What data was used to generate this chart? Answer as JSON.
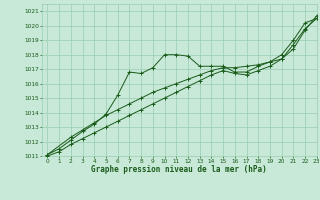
{
  "title": "Graphe pression niveau de la mer (hPa)",
  "bg_color": "#c8e8d8",
  "grid_color": "#99ccb0",
  "line_color": "#1a5c1a",
  "xlim": [
    -0.5,
    23
  ],
  "ylim": [
    1011,
    1021.5
  ],
  "xticks": [
    0,
    1,
    2,
    3,
    4,
    5,
    6,
    7,
    8,
    9,
    10,
    11,
    12,
    13,
    14,
    15,
    16,
    17,
    18,
    19,
    20,
    21,
    22,
    23
  ],
  "yticks": [
    1011,
    1012,
    1013,
    1014,
    1015,
    1016,
    1017,
    1018,
    1019,
    1020,
    1021
  ],
  "series1_x": [
    0,
    1,
    2,
    3,
    4,
    5,
    6,
    7,
    8,
    9,
    10,
    11,
    12,
    13,
    14,
    15,
    16,
    17,
    18,
    19,
    20,
    21,
    22,
    23
  ],
  "series1_y": [
    1011.1,
    1011.5,
    1012.1,
    1012.7,
    1013.2,
    1013.9,
    1015.2,
    1016.8,
    1016.7,
    1017.1,
    1018.0,
    1018.0,
    1017.9,
    1017.2,
    1017.2,
    1017.2,
    1016.8,
    1016.8,
    1017.2,
    1017.5,
    1018.0,
    1019.0,
    1020.2,
    1020.5
  ],
  "series2_x": [
    0,
    2,
    3,
    4,
    5,
    6,
    7,
    8,
    9,
    10,
    11,
    12,
    13,
    14,
    15,
    16,
    17,
    18,
    19,
    20,
    21,
    22,
    23
  ],
  "series2_y": [
    1011.1,
    1012.3,
    1012.8,
    1013.3,
    1013.8,
    1014.2,
    1014.6,
    1015.0,
    1015.4,
    1015.7,
    1016.0,
    1016.3,
    1016.6,
    1016.9,
    1017.1,
    1017.1,
    1017.2,
    1017.3,
    1017.5,
    1017.7,
    1018.7,
    1019.8,
    1020.5
  ],
  "series3_x": [
    0,
    1,
    2,
    3,
    4,
    5,
    6,
    7,
    8,
    9,
    10,
    11,
    12,
    13,
    14,
    15,
    16,
    17,
    18,
    19,
    20,
    21,
    22,
    23
  ],
  "series3_y": [
    1011.0,
    1011.3,
    1011.8,
    1012.2,
    1012.6,
    1013.0,
    1013.4,
    1013.8,
    1014.2,
    1014.6,
    1015.0,
    1015.4,
    1015.8,
    1016.2,
    1016.6,
    1016.9,
    1016.7,
    1016.6,
    1016.9,
    1017.2,
    1017.7,
    1018.4,
    1019.7,
    1020.7
  ]
}
